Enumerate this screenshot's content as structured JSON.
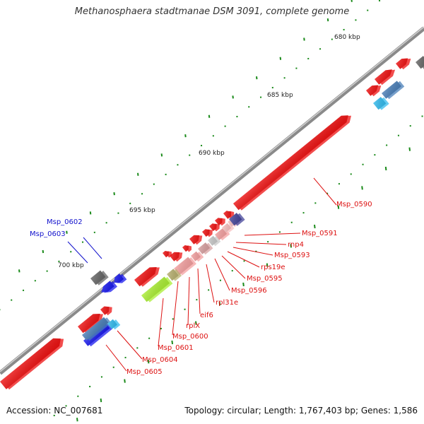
{
  "title": "Methanosphaera stadtmanae DSM 3091, complete genome",
  "accession": "Accession: NC_007681",
  "summary": "Topology: circular; Length: 1,767,403 bp; Genes: 1,586",
  "scale_labels": [
    "680 kbp",
    "685 kbp",
    "690 kbp",
    "695 kbp",
    "700 kbp"
  ],
  "gene_labels_red": [
    "Msp_0590",
    "Msp_0591",
    "rnp4",
    "Msp_0593",
    "rps19e",
    "Msp_0595",
    "Msp_0596",
    "rpl31e",
    "eif6",
    "rplX",
    "Msp_0600",
    "Msp_0601",
    "Msp_0604",
    "Msp_0605"
  ],
  "gene_labels_blue": [
    "Msp_0602",
    "Msp_0603"
  ],
  "colors": {
    "backbone": "#8a8a8a",
    "red_gene": "#ee1111",
    "pink_gene": "#f4a0a0",
    "blue_gene": "#1a1aee",
    "steel_gene": "#4a7fb8",
    "cyan_gene": "#33bbee",
    "gray_gene": "#666666",
    "green_gene": "#aaee33",
    "olive_gene": "#b8b070",
    "navy_gene": "#444499",
    "tick": "#1a8a1a",
    "red_label": "#dd1111",
    "blue_label": "#1111cc"
  }
}
